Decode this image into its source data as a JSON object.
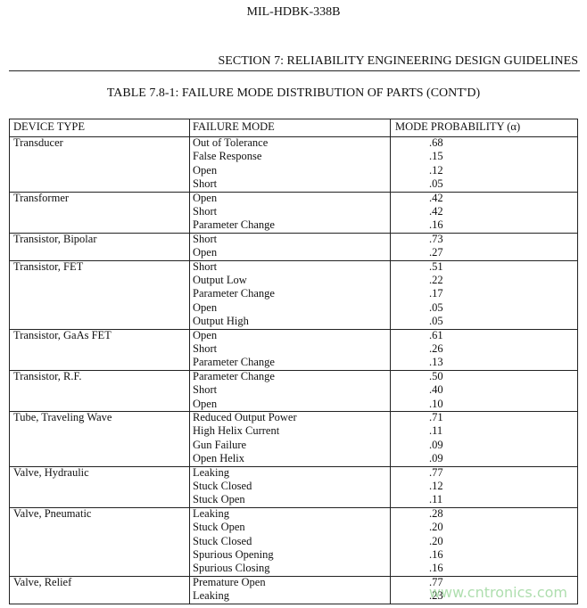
{
  "header": {
    "doc_id": "MIL-HDBK-338B",
    "section": "SECTION 7:  RELIABILITY ENGINEERING DESIGN GUIDELINES"
  },
  "table": {
    "title": "TABLE 7.8-1:  FAILURE MODE DISTRIBUTION OF PARTS (CONT'D)",
    "columns": [
      "DEVICE TYPE",
      "FAILURE MODE",
      "MODE PROBABILITY (α)"
    ],
    "groups": [
      {
        "device": "Transducer",
        "modes": [
          {
            "mode": "Out of Tolerance",
            "probability": ".68"
          },
          {
            "mode": "False Response",
            "probability": ".15"
          },
          {
            "mode": "Open",
            "probability": ".12"
          },
          {
            "mode": "Short",
            "probability": ".05"
          }
        ]
      },
      {
        "device": "Transformer",
        "modes": [
          {
            "mode": "Open",
            "probability": ".42"
          },
          {
            "mode": "Short",
            "probability": ".42"
          },
          {
            "mode": "Parameter Change",
            "probability": ".16"
          }
        ]
      },
      {
        "device": "Transistor, Bipolar",
        "modes": [
          {
            "mode": "Short",
            "probability": ".73"
          },
          {
            "mode": "Open",
            "probability": ".27"
          }
        ]
      },
      {
        "device": "Transistor, FET",
        "modes": [
          {
            "mode": "Short",
            "probability": ".51"
          },
          {
            "mode": "Output Low",
            "probability": ".22"
          },
          {
            "mode": "Parameter Change",
            "probability": ".17"
          },
          {
            "mode": "Open",
            "probability": ".05"
          },
          {
            "mode": "Output High",
            "probability": ".05"
          }
        ]
      },
      {
        "device": "Transistor, GaAs FET",
        "modes": [
          {
            "mode": "Open",
            "probability": ".61"
          },
          {
            "mode": "Short",
            "probability": ".26"
          },
          {
            "mode": "Parameter Change",
            "probability": ".13"
          }
        ]
      },
      {
        "device": "Transistor, R.F.",
        "modes": [
          {
            "mode": "Parameter Change",
            "probability": ".50"
          },
          {
            "mode": "Short",
            "probability": ".40"
          },
          {
            "mode": "Open",
            "probability": ".10"
          }
        ]
      },
      {
        "device": "Tube, Traveling Wave",
        "modes": [
          {
            "mode": "Reduced Output Power",
            "probability": ".71"
          },
          {
            "mode": "High Helix Current",
            "probability": ".11"
          },
          {
            "mode": "Gun Failure",
            "probability": ".09"
          },
          {
            "mode": "Open Helix",
            "probability": ".09"
          }
        ]
      },
      {
        "device": "Valve, Hydraulic",
        "modes": [
          {
            "mode": "Leaking",
            "probability": ".77"
          },
          {
            "mode": "Stuck Closed",
            "probability": ".12"
          },
          {
            "mode": "Stuck Open",
            "probability": ".11"
          }
        ]
      },
      {
        "device": "Valve, Pneumatic",
        "modes": [
          {
            "mode": "Leaking",
            "probability": ".28"
          },
          {
            "mode": "Stuck Open",
            "probability": ".20"
          },
          {
            "mode": "Stuck Closed",
            "probability": ".20"
          },
          {
            "mode": "Spurious Opening",
            "probability": ".16"
          },
          {
            "mode": "Spurious Closing",
            "probability": ".16"
          }
        ]
      },
      {
        "device": "Valve, Relief",
        "modes": [
          {
            "mode": "Premature Open",
            "probability": ".77"
          },
          {
            "mode": "Leaking",
            "probability": ".23"
          }
        ]
      }
    ]
  },
  "watermark": "www.cntronics.com"
}
